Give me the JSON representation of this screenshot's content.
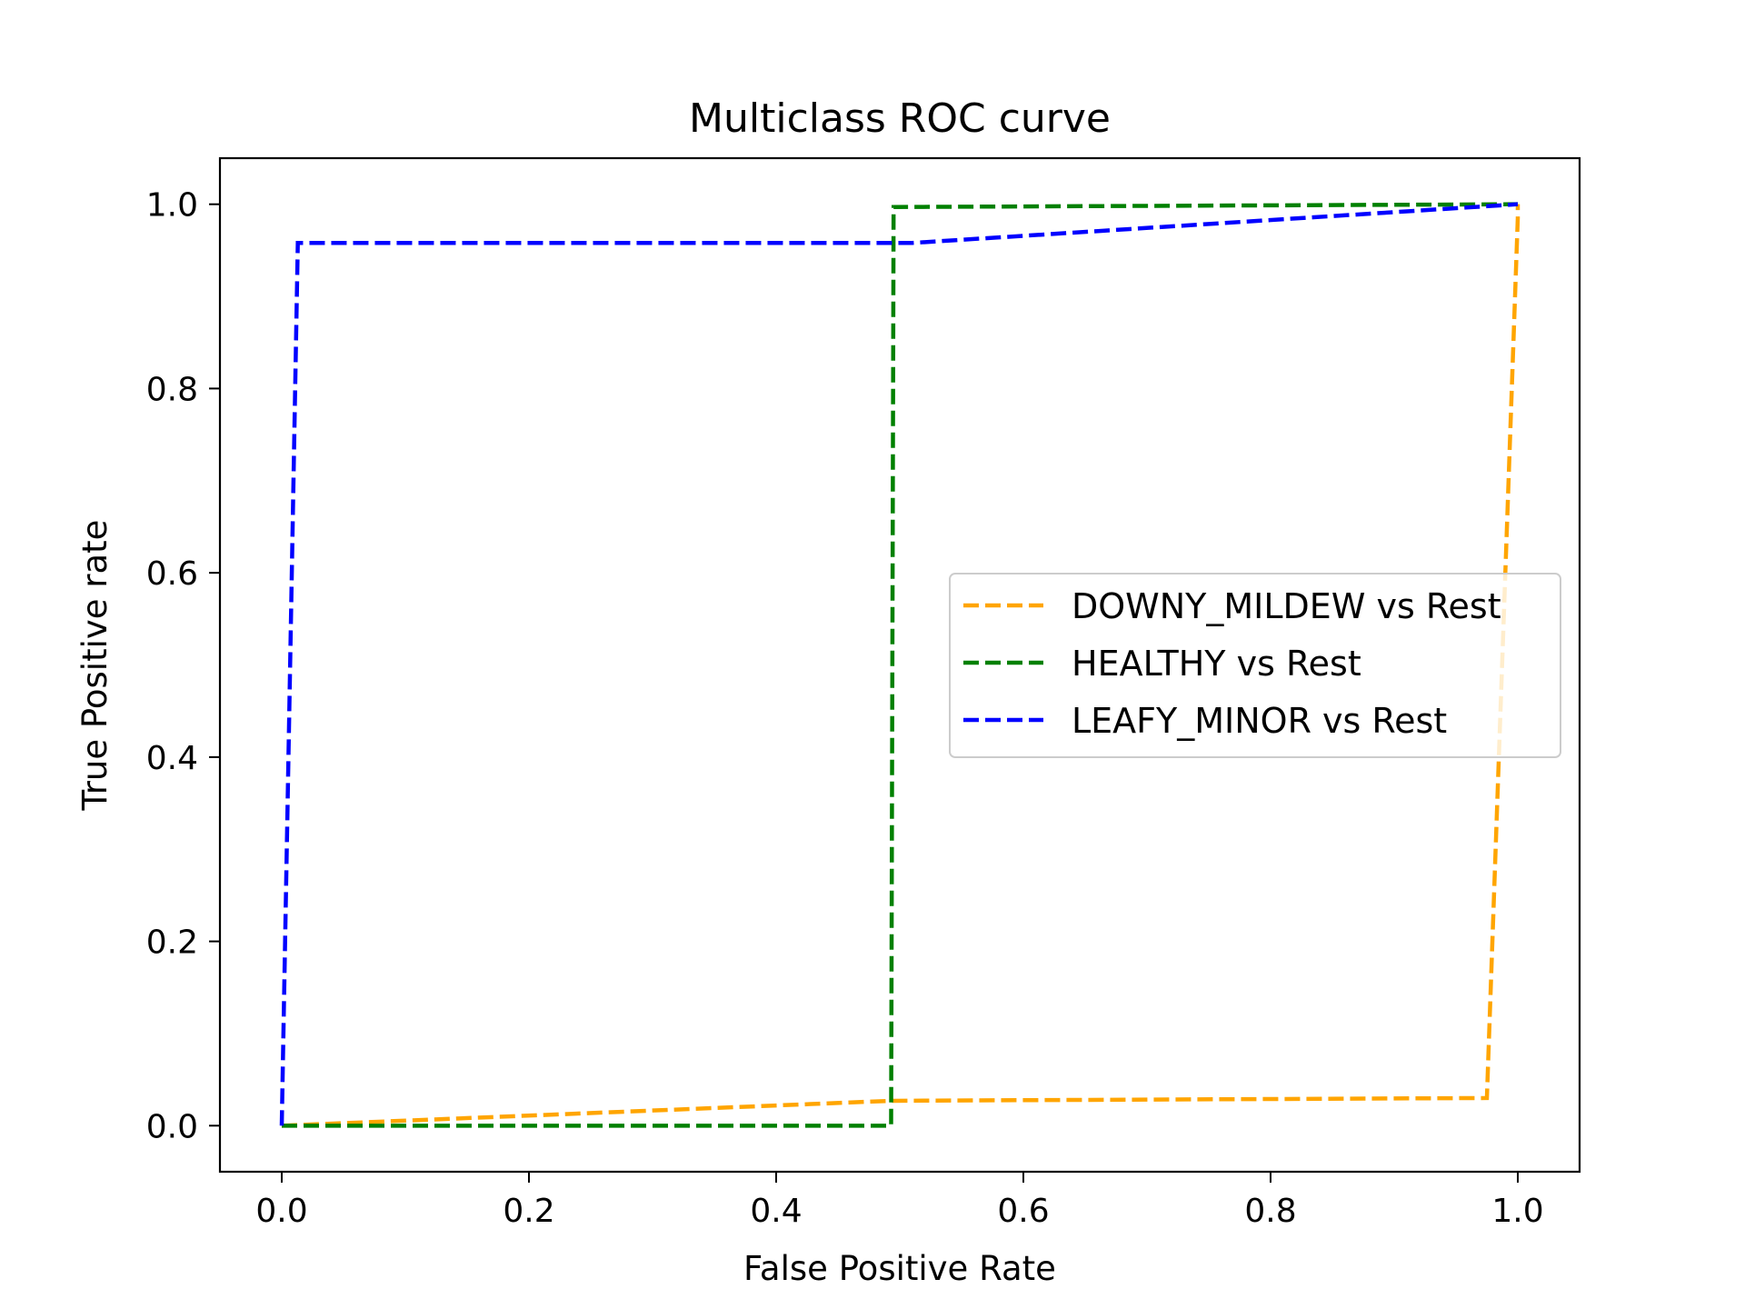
{
  "chart_data": {
    "type": "line",
    "title": "Multiclass ROC curve",
    "xlabel": "False Positive Rate",
    "ylabel": "True Positive rate",
    "xlim": [
      -0.05,
      1.05
    ],
    "ylim": [
      -0.05,
      1.05
    ],
    "xticks": [
      0.0,
      0.2,
      0.4,
      0.6,
      0.8,
      1.0
    ],
    "xtick_labels": [
      "0.0",
      "0.2",
      "0.4",
      "0.6",
      "0.8",
      "1.0"
    ],
    "yticks": [
      0.0,
      0.2,
      0.4,
      0.6,
      0.8,
      1.0
    ],
    "ytick_labels": [
      "0.0",
      "0.2",
      "0.4",
      "0.6",
      "0.8",
      "1.0"
    ],
    "grid": false,
    "legend_position": "center-right",
    "series": [
      {
        "name": "DOWNY_MILDEW vs Rest",
        "color": "#ffa500",
        "linestyle": "dashed",
        "x": [
          0.0,
          0.493,
          0.975,
          1.0,
          1.0
        ],
        "y": [
          0.0,
          0.027,
          0.03,
          0.985,
          1.0
        ]
      },
      {
        "name": "HEALTHY vs Rest",
        "color": "#008000",
        "linestyle": "dashed",
        "x": [
          0.0,
          0.493,
          0.495,
          1.0
        ],
        "y": [
          0.0,
          0.0,
          0.997,
          1.0
        ]
      },
      {
        "name": "LEAFY_MINOR vs Rest",
        "color": "#0000ff",
        "linestyle": "dashed",
        "x": [
          0.0,
          0.013,
          0.51,
          1.0
        ],
        "y": [
          0.0,
          0.958,
          0.958,
          1.0
        ]
      }
    ]
  }
}
